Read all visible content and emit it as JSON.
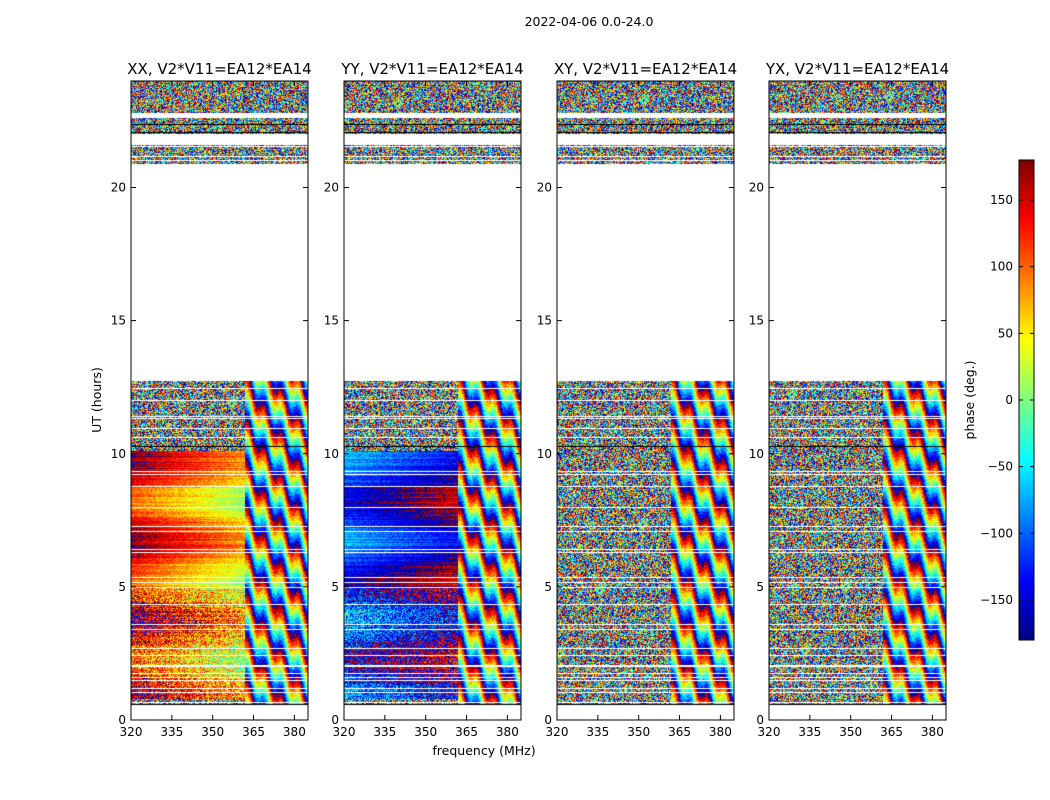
{
  "figure": {
    "suptitle": "2022-04-06 0.0-24.0",
    "xlabel": "frequency (MHz)",
    "ylabel": "UT (hours)"
  },
  "colorbar": {
    "label": "phase (deg.)",
    "range": [
      -180,
      180
    ],
    "ticks": [
      150,
      100,
      50,
      0,
      -50,
      -100,
      -150
    ],
    "tick_labels": [
      "150",
      "100",
      "50",
      "0",
      "−50",
      "−100",
      "−150"
    ],
    "colormap": "jet",
    "colors": [
      "#00007f",
      "#0000ff",
      "#007fff",
      "#00ffff",
      "#7fff7f",
      "#ffff00",
      "#ff7f00",
      "#ff0000",
      "#7f0000"
    ]
  },
  "chart_data": {
    "type": "heatmap",
    "x_range": [
      320,
      385
    ],
    "y_range": [
      0,
      24
    ],
    "x_ticks": [
      320,
      335,
      350,
      365,
      380
    ],
    "x_tick_labels": [
      "320",
      "335",
      "350",
      "365",
      "380"
    ],
    "y_ticks": [
      0,
      5,
      10,
      15,
      20
    ],
    "y_tick_labels": [
      "0",
      "5",
      "10",
      "15",
      "20"
    ],
    "value": "phase (deg.)",
    "value_range": [
      -180,
      180
    ],
    "data_gaps_ut": [
      [
        0.0,
        0.55
      ],
      [
        12.75,
        20.9
      ]
    ],
    "panels": [
      {
        "title": "XX, V2*V11=EA12*EA14",
        "pol": "XX",
        "coherent_phase_deg": 140
      },
      {
        "title": "YY, V2*V11=EA12*EA14",
        "pol": "YY",
        "coherent_phase_deg": -110
      },
      {
        "title": "XY, V2*V11=EA12*EA14",
        "pol": "XY",
        "coherent_phase_deg": null
      },
      {
        "title": "YX, V2*V11=EA12*EA14",
        "pol": "YX",
        "coherent_phase_deg": null
      }
    ]
  }
}
